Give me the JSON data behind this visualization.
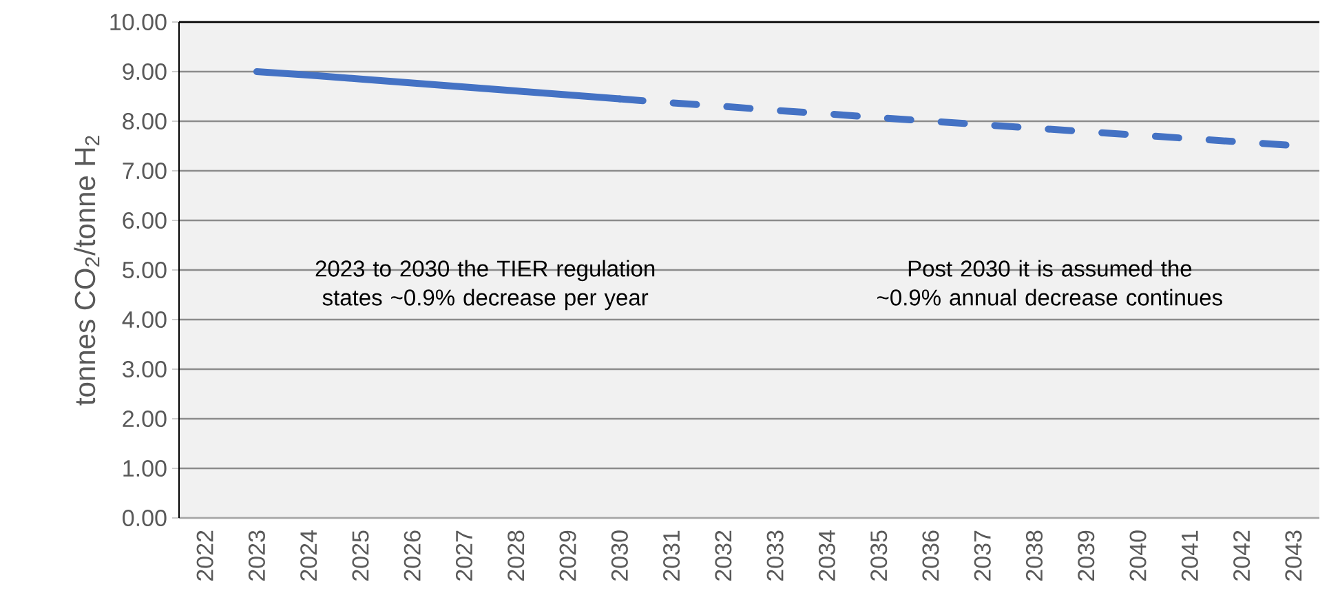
{
  "chart_data": {
    "type": "line",
    "ylabel": "tonnes CO$_{2}$/tonne H$_{2}$",
    "categories": [
      "2022",
      "2023",
      "2024",
      "2025",
      "2026",
      "2027",
      "2028",
      "2029",
      "2030",
      "2031",
      "2032",
      "2033",
      "2034",
      "2035",
      "2036",
      "2037",
      "2038",
      "2039",
      "2040",
      "2041",
      "2042",
      "2043"
    ],
    "series": [
      {
        "color": "#4472c4",
        "line_style": "solid",
        "values": [
          null,
          9.0,
          8.93,
          8.85,
          8.77,
          8.69,
          8.61,
          8.53,
          8.45,
          null,
          null,
          null,
          null,
          null,
          null,
          null,
          null,
          null,
          null,
          null,
          null,
          null
        ]
      },
      {
        "color": "#4472c4",
        "line_style": "dashed",
        "values": [
          null,
          null,
          null,
          null,
          null,
          null,
          null,
          null,
          8.45,
          8.37,
          8.3,
          8.22,
          8.15,
          8.07,
          8.0,
          7.93,
          7.86,
          7.79,
          7.72,
          7.65,
          7.58,
          7.51
        ]
      }
    ],
    "ylim": [
      0,
      10
    ],
    "yticks": [
      {
        "value": 0,
        "label": "0.00"
      },
      {
        "value": 1,
        "label": "1.00"
      },
      {
        "value": 2,
        "label": "2.00"
      },
      {
        "value": 3,
        "label": "3.00"
      },
      {
        "value": 4,
        "label": "4.00"
      },
      {
        "value": 5,
        "label": "5.00"
      },
      {
        "value": 6,
        "label": "6.00"
      },
      {
        "value": 7,
        "label": "7.00"
      },
      {
        "value": 8,
        "label": "8.00"
      },
      {
        "value": 9,
        "label": "9.00"
      },
      {
        "value": 10,
        "label": "10.00"
      }
    ],
    "grid": "y",
    "marker": "none",
    "annotations": [
      "2023 to 2030 the TIER regulation states ~0.9% decrease per year",
      "Post 2030 it is assumed the ~0.9% annual decrease continues"
    ]
  }
}
